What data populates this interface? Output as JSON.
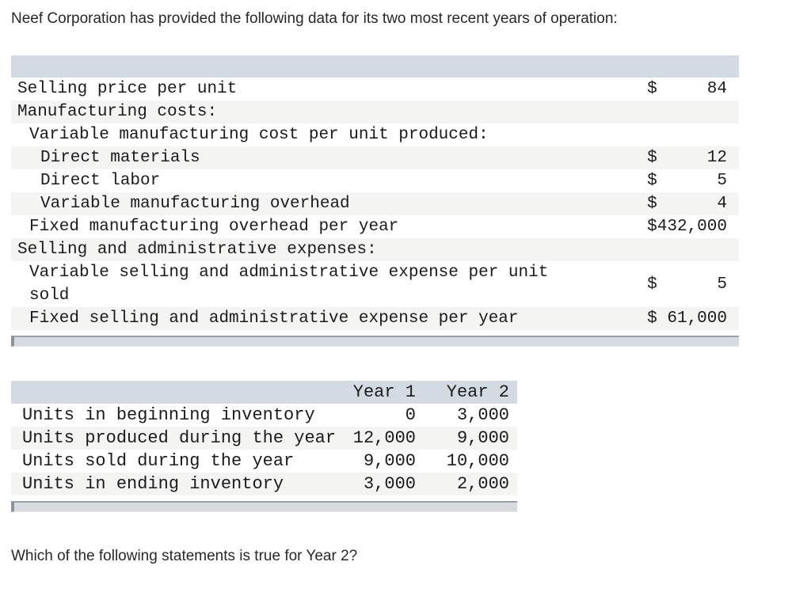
{
  "page": {
    "intro": "Neef Corporation has provided the following data for its two most recent years of operation:",
    "question": "Which of the following statements is true for Year 2?"
  },
  "theme": {
    "head-bg": "#d4dae2",
    "stripe-bg": "#f4f4f3",
    "sb-track": "#d7dade"
  },
  "cost_table": {
    "rows": [
      {
        "label": "Selling price per unit",
        "indent": 0,
        "currency": "$",
        "amount": "84"
      },
      {
        "label": "Manufacturing costs:",
        "indent": 0,
        "currency": "",
        "amount": ""
      },
      {
        "label": "Variable manufacturing cost per unit produced:",
        "indent": 1,
        "currency": "",
        "amount": ""
      },
      {
        "label": "Direct materials",
        "indent": 2,
        "currency": "$",
        "amount": "12"
      },
      {
        "label": "Direct labor",
        "indent": 2,
        "currency": "$",
        "amount": "5"
      },
      {
        "label": "Variable manufacturing overhead",
        "indent": 2,
        "currency": "$",
        "amount": "4"
      },
      {
        "label": "Fixed manufacturing overhead per year",
        "indent": 1,
        "currency": "$",
        "amount": "432,000"
      },
      {
        "label": "Selling and administrative expenses:",
        "indent": 0,
        "currency": "",
        "amount": ""
      },
      {
        "label": "Variable selling and administrative expense per unit sold",
        "indent": 1,
        "currency": "$",
        "amount": "5"
      },
      {
        "label": "Fixed selling and administrative expense per year",
        "indent": 1,
        "currency": "$",
        "amount": "61,000"
      }
    ]
  },
  "units_table": {
    "columns": [
      "Year 1",
      "Year 2"
    ],
    "rows": [
      {
        "label": "Units in beginning inventory",
        "year1": "0",
        "year2": "3,000"
      },
      {
        "label": "Units produced during the year",
        "year1": "12,000",
        "year2": "9,000"
      },
      {
        "label": "Units sold during the year",
        "year1": "9,000",
        "year2": "10,000"
      },
      {
        "label": "Units in ending inventory",
        "year1": "3,000",
        "year2": "2,000"
      }
    ]
  }
}
